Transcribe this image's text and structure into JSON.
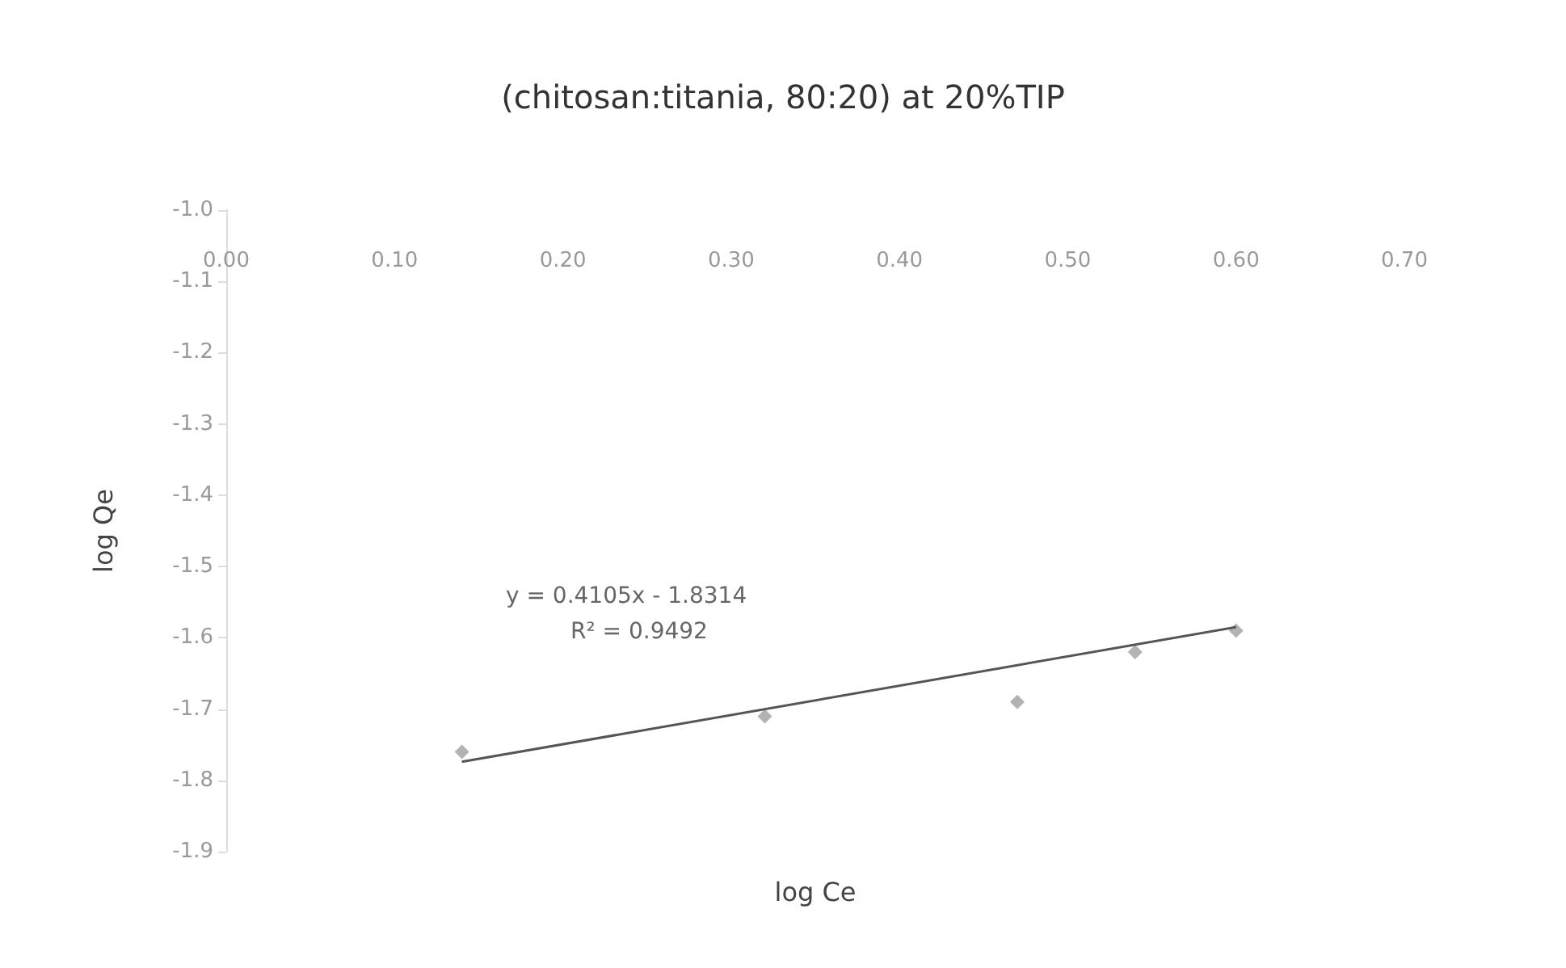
{
  "chart_data": {
    "type": "scatter",
    "title": "(chitosan:titania, 80:20) at 20%TIP",
    "xlabel": "log Ce",
    "ylabel": "log Qe",
    "xlim": [
      0,
      0.7
    ],
    "xticks": [
      {
        "value": 0,
        "label": "0.00"
      },
      {
        "value": 0.1,
        "label": "0.10"
      },
      {
        "value": 0.2,
        "label": "0.20"
      },
      {
        "value": 0.3,
        "label": "0.30"
      },
      {
        "value": 0.4,
        "label": "0.40"
      },
      {
        "value": 0.5,
        "label": "0.50"
      },
      {
        "value": 0.6,
        "label": "0.60"
      },
      {
        "value": 0.7,
        "label": "0.70"
      }
    ],
    "ylim": [
      -1.9,
      -1.0
    ],
    "yticks": [
      -1.9,
      -1.8,
      -1.7,
      -1.6,
      -1.5,
      -1.4,
      -1.3,
      -1.2,
      -1.1,
      {
        "value": -1.0,
        "label": "-1.0"
      }
    ],
    "series": [
      {
        "color": "#a0a0a0",
        "marker": "diamond",
        "x": [
          0.14,
          0.32,
          0.47,
          0.54,
          0.6
        ],
        "values": [
          -1.76,
          -1.71,
          -1.69,
          -1.62,
          -1.59
        ]
      },
      {
        "type": "line",
        "color": "#555555",
        "line_style": "solid",
        "marker": "none",
        "x": [
          0.14,
          0.6
        ],
        "values": [
          -1.774,
          -1.585
        ]
      }
    ],
    "annotations": [
      "y = 0.4105x - 1.8314",
      "R² = 0.9492"
    ],
    "grid": false
  }
}
